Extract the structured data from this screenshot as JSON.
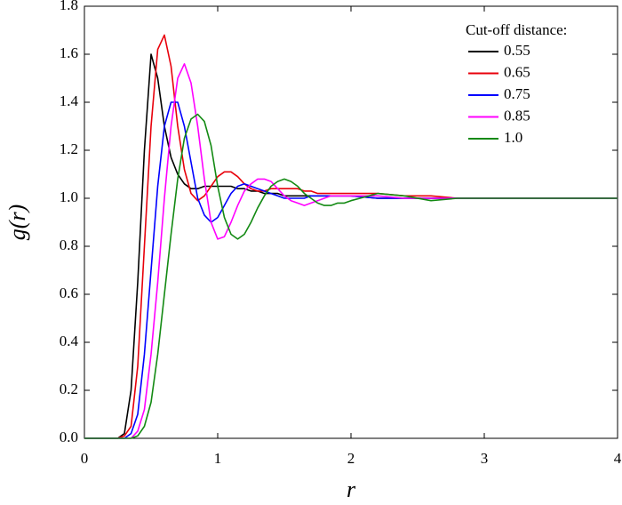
{
  "chart_data": {
    "type": "line",
    "x_label": "r",
    "y_label": "g(r)",
    "legend_title": "Cut-off distance:",
    "legend": "upper right",
    "grid": false,
    "xlim": [
      0,
      4
    ],
    "ylim": [
      0,
      1.8
    ],
    "xticks": [
      0,
      1,
      2,
      3,
      4
    ],
    "yticks": [
      {
        "value": 0,
        "label": "0.0"
      },
      0.2,
      0.4,
      0.6,
      0.8,
      {
        "value": 1,
        "label": "1.0"
      },
      1.2,
      1.4,
      1.6,
      1.8
    ],
    "x": [
      0,
      0.05,
      0.1,
      0.15,
      0.2,
      0.25,
      0.3,
      0.35,
      0.4,
      0.45,
      0.5,
      0.55,
      0.6,
      0.65,
      0.7,
      0.75,
      0.8,
      0.85,
      0.9,
      0.95,
      1.0,
      1.05,
      1.1,
      1.15,
      1.2,
      1.25,
      1.3,
      1.35,
      1.4,
      1.45,
      1.5,
      1.55,
      1.6,
      1.65,
      1.7,
      1.75,
      1.8,
      1.85,
      1.9,
      1.95,
      2.0,
      2.2,
      2.4,
      2.6,
      2.8,
      3.0,
      3.2,
      3.4,
      3.6,
      3.8,
      4.0
    ],
    "series": [
      {
        "name": "0.55",
        "color": "#000000",
        "values": [
          0,
          0,
          0,
          0,
          0,
          0,
          0.02,
          0.2,
          0.65,
          1.2,
          1.6,
          1.5,
          1.3,
          1.17,
          1.1,
          1.06,
          1.04,
          1.04,
          1.05,
          1.05,
          1.05,
          1.05,
          1.05,
          1.04,
          1.04,
          1.03,
          1.03,
          1.02,
          1.02,
          1.02,
          1.01,
          1.01,
          1.01,
          1.01,
          1.01,
          1.01,
          1.01,
          1.01,
          1.01,
          1.01,
          1.01,
          1.0,
          1.0,
          1.0,
          1.0,
          1.0,
          1.0,
          1.0,
          1.0,
          1.0,
          1.0
        ]
      },
      {
        "name": "0.65",
        "color": "#e8000b",
        "values": [
          0,
          0,
          0,
          0,
          0,
          0,
          0.01,
          0.05,
          0.3,
          0.8,
          1.3,
          1.62,
          1.68,
          1.55,
          1.3,
          1.12,
          1.02,
          0.99,
          1.01,
          1.05,
          1.09,
          1.11,
          1.11,
          1.09,
          1.06,
          1.04,
          1.03,
          1.03,
          1.04,
          1.04,
          1.04,
          1.04,
          1.04,
          1.03,
          1.03,
          1.02,
          1.02,
          1.02,
          1.02,
          1.02,
          1.02,
          1.02,
          1.01,
          1.01,
          1.0,
          1.0,
          1.0,
          1.0,
          1.0,
          1.0,
          1.0
        ]
      },
      {
        "name": "0.75",
        "color": "#0000ff",
        "values": [
          0,
          0,
          0,
          0,
          0,
          0,
          0,
          0.02,
          0.1,
          0.35,
          0.7,
          1.05,
          1.3,
          1.4,
          1.4,
          1.3,
          1.15,
          1.0,
          0.93,
          0.9,
          0.92,
          0.97,
          1.02,
          1.05,
          1.06,
          1.05,
          1.04,
          1.03,
          1.02,
          1.01,
          1.0,
          1.0,
          1.0,
          1.0,
          1.01,
          1.01,
          1.01,
          1.01,
          1.01,
          1.01,
          1.01,
          1.0,
          1.0,
          1.0,
          1.0,
          1.0,
          1.0,
          1.0,
          1.0,
          1.0,
          1.0
        ]
      },
      {
        "name": "0.85",
        "color": "#ff00ff",
        "values": [
          0,
          0,
          0,
          0,
          0,
          0,
          0,
          0,
          0.03,
          0.12,
          0.35,
          0.65,
          1.0,
          1.3,
          1.5,
          1.56,
          1.48,
          1.3,
          1.08,
          0.9,
          0.83,
          0.84,
          0.9,
          0.97,
          1.03,
          1.06,
          1.08,
          1.08,
          1.07,
          1.04,
          1.01,
          0.99,
          0.98,
          0.97,
          0.98,
          0.99,
          1.0,
          1.01,
          1.01,
          1.01,
          1.01,
          1.01,
          1.0,
          1.0,
          1.0,
          1.0,
          1.0,
          1.0,
          1.0,
          1.0,
          1.0
        ]
      },
      {
        "name": "1.0",
        "color": "#138a13",
        "values": [
          0,
          0,
          0,
          0,
          0,
          0,
          0,
          0,
          0.01,
          0.05,
          0.15,
          0.35,
          0.6,
          0.85,
          1.08,
          1.25,
          1.33,
          1.35,
          1.32,
          1.22,
          1.05,
          0.92,
          0.85,
          0.83,
          0.85,
          0.9,
          0.96,
          1.01,
          1.05,
          1.07,
          1.08,
          1.07,
          1.05,
          1.02,
          1.0,
          0.98,
          0.97,
          0.97,
          0.98,
          0.98,
          0.99,
          1.02,
          1.01,
          0.99,
          1.0,
          1.0,
          1.0,
          1.0,
          1.0,
          1.0,
          1.0
        ]
      }
    ]
  }
}
